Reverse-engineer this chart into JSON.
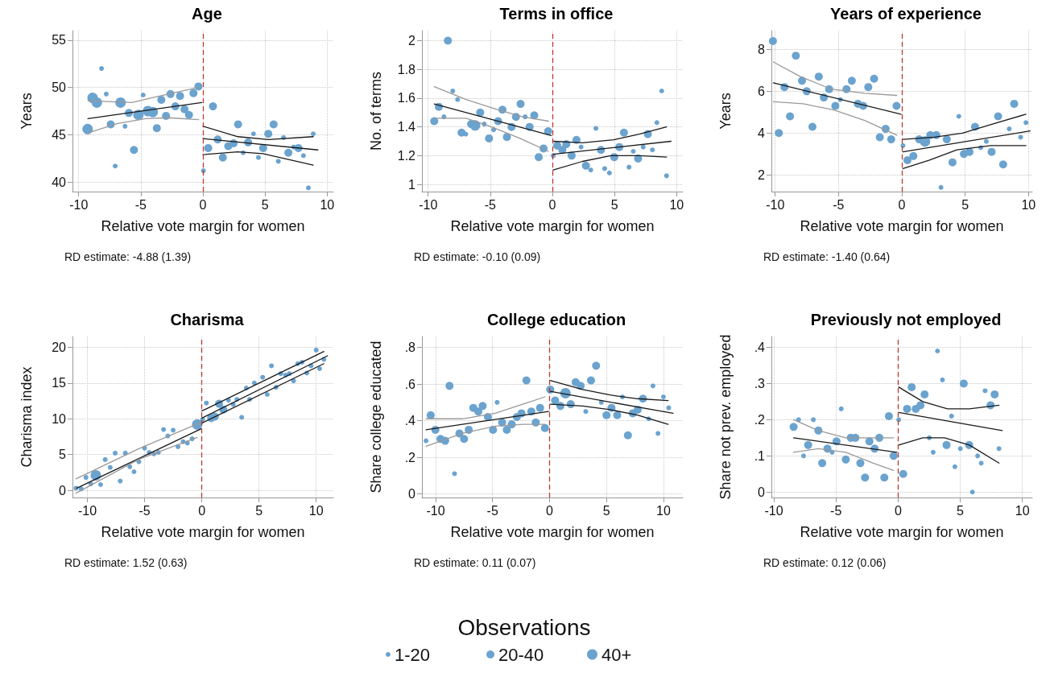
{
  "chart_data": [
    {
      "type": "scatter",
      "title": "Age",
      "xlabel": "Relative vote margin for women",
      "ylabel": "Years",
      "xlim": [
        -10.5,
        10.5
      ],
      "xticks": [
        -10,
        -5,
        0,
        5,
        10
      ],
      "ylim": [
        39,
        56
      ],
      "yticks": [
        40,
        45,
        50,
        55
      ],
      "grid": true,
      "annotations": [
        "RD estimate: -4.88 (1.39)"
      ],
      "ref_lines": [
        {
          "axis": "x",
          "value": 0,
          "color": "#c0392b",
          "line_style": "dashed"
        }
      ],
      "series": [
        {
          "type": "scatter",
          "marker": "circle",
          "color": "#6ba3cf",
          "x": [
            -8.16,
            -7.78,
            -7.06,
            -6.27,
            -4.81,
            0.04,
            3.24,
            4.07,
            4.47,
            6.07,
            6.49,
            7.3,
            8.09,
            8.49,
            8.88
          ],
          "values": [
            52.0,
            49.3,
            41.7,
            45.9,
            49.2,
            41.2,
            43.1,
            45.1,
            42.6,
            42.2,
            44.7,
            43.7,
            42.8,
            39.4,
            45.1
          ]
        },
        {
          "type": "scatter",
          "marker": "circle",
          "color": "#6ba3cf",
          "x": [
            -7.42,
            -5.96,
            -5.55,
            -3.71,
            -3.35,
            -2.97,
            -2.61,
            -2.22,
            -1.84,
            -1.48,
            -1.12,
            -0.76,
            -0.36,
            0.43,
            0.81,
            1.19,
            1.6,
            2.04,
            2.47,
            2.83,
            3.64,
            4.85,
            5.26,
            5.69,
            6.88,
            7.69
          ],
          "values": [
            46.1,
            47.3,
            43.4,
            45.7,
            48.7,
            47.0,
            49.3,
            48.0,
            49.1,
            47.7,
            47.1,
            49.4,
            50.1,
            43.6,
            48.0,
            44.5,
            42.6,
            43.8,
            44.1,
            46.1,
            44.2,
            43.6,
            45.1,
            46.1,
            43.1,
            43.6
          ]
        },
        {
          "type": "scatter",
          "marker": "circle",
          "color": "#6ba3cf",
          "x": [
            -9.28,
            -8.88,
            -8.54,
            -6.63,
            -5.19,
            -4.43,
            -4.04
          ],
          "values": [
            45.6,
            48.9,
            48.4,
            48.4,
            47.1,
            47.5,
            47.4
          ]
        },
        {
          "type": "line",
          "marker": "none",
          "color": "#1a1a1a",
          "x": [
            -9.26,
            -0.09
          ],
          "values": [
            46.7,
            48.4
          ]
        },
        {
          "type": "line",
          "marker": "none",
          "color": "#999999",
          "x": [
            -9.26,
            -5.73,
            -2.81,
            -0.34
          ],
          "values": [
            48.6,
            48.4,
            49.3,
            50.0
          ]
        },
        {
          "type": "line",
          "marker": "none",
          "color": "#999999",
          "x": [
            -9.26,
            -6.85,
            -4.61,
            -2.81,
            -0.34
          ],
          "values": [
            45.2,
            46.2,
            46.7,
            46.8,
            46.6
          ]
        },
        {
          "type": "line",
          "marker": "none",
          "color": "#1a1a1a",
          "x": [
            0,
            9.26
          ],
          "values": [
            44.6,
            43.4
          ]
        },
        {
          "type": "line",
          "marker": "none",
          "color": "#1a1a1a",
          "x": [
            0,
            2.81,
            5.28,
            8.88
          ],
          "values": [
            45.9,
            44.8,
            44.5,
            44.8
          ]
        },
        {
          "type": "line",
          "marker": "none",
          "color": "#1a1a1a",
          "x": [
            0,
            2.81,
            4.83,
            8.88
          ],
          "values": [
            42.9,
            43.2,
            43.0,
            41.8
          ]
        }
      ]
    },
    {
      "type": "scatter",
      "title": "Terms in office",
      "xlabel": "Relative vote margin for women",
      "ylabel": "No. of terms",
      "xlim": [
        -10.5,
        10.5
      ],
      "xticks": [
        -10,
        -5,
        0,
        5,
        10
      ],
      "ylim": [
        0.95,
        2.07
      ],
      "yticks": [
        1,
        1.2,
        1.4,
        1.6,
        1.8,
        2
      ],
      "grid": true,
      "annotations": [
        "RD estimate: -0.10 (0.09)"
      ],
      "ref_lines": [
        {
          "axis": "x",
          "value": 0,
          "color": "#c0392b",
          "line_style": "dashed"
        }
      ],
      "series": [
        {
          "type": "scatter",
          "marker": "circle",
          "color": "#6ba3cf",
          "x": [
            -8.73,
            -8.02,
            -7.63,
            -6.97,
            -5.49,
            -4.73,
            -2.19,
            0.07,
            2.31,
            3.09,
            3.5,
            4.21,
            4.59,
            6.17,
            6.51,
            7.31,
            8.05,
            8.41,
            8.8,
            9.19
          ],
          "values": [
            1.47,
            1.65,
            1.59,
            1.35,
            1.42,
            1.38,
            1.47,
            1.2,
            1.26,
            1.1,
            1.39,
            1.11,
            1.08,
            1.12,
            1.23,
            1.26,
            1.24,
            1.43,
            1.65,
            1.06
          ]
        },
        {
          "type": "scatter",
          "marker": "circle",
          "color": "#6ba3cf",
          "x": [
            -9.51,
            -9.14,
            -8.41,
            -7.31,
            -6.54,
            -5.81,
            -5.1,
            -4.37,
            -4.02,
            -3.66,
            -3.29,
            -2.93,
            -2.56,
            -1.83,
            -1.46,
            -1.1,
            -0.71,
            -0.34,
            0.39,
            0.8,
            1.12,
            1.55,
            1.94,
            2.7,
            3.91,
            4.98,
            5.39,
            5.76,
            6.9,
            7.68
          ],
          "values": [
            1.44,
            1.54,
            2.0,
            1.36,
            1.42,
            1.5,
            1.32,
            1.44,
            1.52,
            1.33,
            1.4,
            1.47,
            1.56,
            1.4,
            1.48,
            1.19,
            1.25,
            1.37,
            1.27,
            1.24,
            1.28,
            1.2,
            1.31,
            1.13,
            1.24,
            1.19,
            1.26,
            1.36,
            1.18,
            1.35
          ]
        },
        {
          "type": "scatter",
          "marker": "circle",
          "color": "#6ba3cf",
          "x": [
            -6.22
          ],
          "values": [
            1.41
          ]
        },
        {
          "type": "line",
          "marker": "none",
          "color": "#1a1a1a",
          "x": [
            -9.51,
            -0.09
          ],
          "values": [
            1.56,
            1.34
          ]
        },
        {
          "type": "line",
          "marker": "none",
          "color": "#999999",
          "x": [
            -9.51,
            -6.95,
            -4.43,
            -2.38,
            -0.32
          ],
          "values": [
            1.68,
            1.59,
            1.52,
            1.47,
            1.44
          ]
        },
        {
          "type": "line",
          "marker": "none",
          "color": "#999999",
          "x": [
            -9.51,
            -6.95,
            -4.89,
            -2.61,
            -0.32
          ],
          "values": [
            1.46,
            1.46,
            1.4,
            1.32,
            1.23
          ]
        },
        {
          "type": "line",
          "marker": "none",
          "color": "#1a1a1a",
          "x": [
            0.07,
            9.55
          ],
          "values": [
            1.21,
            1.3
          ]
        },
        {
          "type": "line",
          "marker": "none",
          "color": "#1a1a1a",
          "x": [
            0.07,
            2.42,
            4.94,
            6.99,
            9.19
          ],
          "values": [
            1.3,
            1.29,
            1.31,
            1.35,
            1.4
          ]
        },
        {
          "type": "line",
          "marker": "none",
          "color": "#1a1a1a",
          "x": [
            0.07,
            2.42,
            4.71,
            6.99,
            9.19
          ],
          "values": [
            1.1,
            1.16,
            1.2,
            1.2,
            1.19
          ]
        }
      ]
    },
    {
      "type": "scatter",
      "title": "Years of experience",
      "xlabel": "Relative vote margin for women",
      "ylabel": "Years",
      "xlim": [
        -10.3,
        10.3
      ],
      "xticks": [
        -10,
        -5,
        0,
        5,
        10
      ],
      "ylim": [
        1.2,
        8.9
      ],
      "yticks": [
        2,
        4,
        6,
        8
      ],
      "grid": true,
      "annotations": [
        "RD estimate: -1.40 (0.64)"
      ],
      "ref_lines": [
        {
          "axis": "x",
          "value": 0,
          "color": "#c0392b",
          "line_style": "dashed"
        }
      ],
      "series": [
        {
          "type": "scatter",
          "marker": "circle",
          "color": "#6ba3cf",
          "x": [
            -4.86,
            0.09,
            3.09,
            4.5,
            6.23,
            6.67,
            8.48,
            9.38,
            9.8
          ],
          "values": [
            5.6,
            3.4,
            1.4,
            4.8,
            3.3,
            3.6,
            4.2,
            3.8,
            4.5
          ]
        },
        {
          "type": "scatter",
          "marker": "circle",
          "color": "#6ba3cf",
          "x": [
            -10.18,
            -9.71,
            -9.27,
            -8.83,
            -8.37,
            -7.88,
            -7.51,
            -7.06,
            -6.56,
            -6.16,
            -5.74,
            -5.25,
            -4.37,
            -3.95,
            -3.47,
            -3.05,
            -2.65,
            -2.19,
            -1.74,
            -1.28,
            -0.84,
            -0.42,
            0.44,
            0.91,
            1.37,
            2.25,
            2.72,
            3.55,
            4.0,
            4.9,
            5.34,
            5.78,
            7.09,
            7.6,
            8.0,
            8.87
          ],
          "values": [
            8.4,
            4.0,
            6.2,
            4.8,
            7.7,
            6.5,
            6.0,
            4.3,
            6.7,
            5.7,
            6.1,
            5.3,
            6.1,
            6.5,
            5.4,
            5.3,
            6.2,
            6.6,
            3.8,
            4.2,
            3.7,
            5.3,
            2.7,
            2.9,
            3.7,
            3.9,
            3.9,
            3.7,
            2.6,
            3.0,
            3.1,
            4.3,
            3.1,
            4.8,
            2.5,
            5.4
          ]
        },
        {
          "type": "scatter",
          "marker": "circle",
          "color": "#6ba3cf",
          "x": [
            1.83
          ],
          "values": [
            3.6
          ]
        },
        {
          "type": "line",
          "marker": "none",
          "color": "#1a1a1a",
          "x": [
            -10.15,
            -0.07
          ],
          "values": [
            6.4,
            4.9
          ]
        },
        {
          "type": "line",
          "marker": "none",
          "color": "#999999",
          "x": [
            -10.15,
            -8.01,
            -5.58,
            -2.94,
            -0.4
          ],
          "values": [
            7.4,
            6.7,
            6.1,
            5.9,
            5.8
          ]
        },
        {
          "type": "line",
          "marker": "none",
          "color": "#999999",
          "x": [
            -10.15,
            -7.79,
            -5.36,
            -2.94,
            -0.4
          ],
          "values": [
            5.5,
            5.4,
            5.1,
            4.6,
            3.9
          ]
        },
        {
          "type": "line",
          "marker": "none",
          "color": "#1a1a1a",
          "x": [
            0.09,
            10.13
          ],
          "values": [
            3.1,
            4.1
          ]
        },
        {
          "type": "line",
          "marker": "none",
          "color": "#1a1a1a",
          "x": [
            0.09,
            2.58,
            4.79,
            7.0,
            9.8
          ],
          "values": [
            3.7,
            3.8,
            4.0,
            4.4,
            4.9
          ]
        },
        {
          "type": "line",
          "marker": "none",
          "color": "#1a1a1a",
          "x": [
            0.09,
            2.14,
            4.35,
            7.0,
            9.8
          ],
          "values": [
            2.3,
            2.7,
            3.2,
            3.4,
            3.4
          ]
        }
      ]
    },
    {
      "type": "scatter",
      "title": "Charisma",
      "xlabel": "Relative vote margin for women",
      "ylabel": "Charisma index",
      "xlim": [
        -11.3,
        11.5
      ],
      "xticks": [
        -10,
        -5,
        0,
        5,
        10
      ],
      "ylim": [
        -1,
        21.5
      ],
      "yticks": [
        0,
        5,
        10,
        15,
        20
      ],
      "grid": true,
      "annotations": [
        "RD estimate: 1.52 (0.63)"
      ],
      "ref_lines": [
        {
          "axis": "x",
          "value": 0,
          "color": "#c0392b",
          "line_style": "dashed"
        }
      ],
      "series": [
        {
          "type": "scatter",
          "marker": "circle",
          "color": "#6ba3cf",
          "x": [
            -10.99,
            -10.54,
            -10.12,
            -9.7,
            -8.84,
            -8.44,
            -8.0,
            -7.57,
            -7.13,
            -6.68,
            -6.29,
            -5.92,
            -5.5,
            -5.0,
            -4.6,
            -4.18,
            -3.79,
            -3.34,
            -2.97,
            -2.5,
            -2.08,
            -1.63,
            -1.26,
            -0.84,
            0.07,
            0.4,
            2.33,
            2.75,
            3.07,
            3.49,
            3.89,
            4.18,
            4.6,
            5.32,
            5.72,
            6.09,
            6.49,
            6.91,
            7.33,
            7.65,
            8.02,
            8.39,
            8.76,
            9.18,
            9.55,
            10.0,
            10.3,
            10.67
          ],
          "values": [
            0.3,
            0.2,
            1.8,
            0.9,
            0.8,
            4.3,
            3.2,
            5.2,
            1.3,
            5.2,
            3.3,
            2.6,
            4.0,
            5.9,
            5.3,
            5.1,
            5.3,
            8.5,
            7.6,
            8.4,
            6.1,
            6.8,
            6.6,
            7.2,
            9.9,
            12.2,
            12.6,
            12.0,
            12.7,
            10.2,
            14.3,
            12.7,
            15.0,
            15.8,
            13.4,
            17.4,
            14.4,
            16.3,
            16.1,
            16.3,
            15.3,
            17.7,
            17.9,
            16.4,
            17.4,
            19.6,
            17.0,
            18.3
          ]
        },
        {
          "type": "scatter",
          "marker": "circle",
          "color": "#6ba3cf",
          "x": [
            0.82,
            1.14,
            1.51,
            1.88
          ],
          "values": [
            10.1,
            10.3,
            12.1,
            11.3
          ]
        },
        {
          "type": "scatter",
          "marker": "circle",
          "color": "#6ba3cf",
          "x": [
            -9.26,
            -0.4
          ],
          "values": [
            2.1,
            9.2
          ]
        },
        {
          "type": "line",
          "marker": "none",
          "color": "#1a1a1a",
          "x": [
            -10.92,
            -0.05
          ],
          "values": [
            0.3,
            8.6
          ]
        },
        {
          "type": "line",
          "marker": "none",
          "color": "#999999",
          "x": [
            -10.99,
            -5.54,
            -0.22
          ],
          "values": [
            1.6,
            5.8,
            9.4
          ]
        },
        {
          "type": "line",
          "marker": "none",
          "color": "#999999",
          "x": [
            -10.99,
            -5.54,
            -0.4
          ],
          "values": [
            -0.4,
            4.3,
            7.4
          ]
        },
        {
          "type": "line",
          "marker": "none",
          "color": "#1a1a1a",
          "x": [
            0.02,
            10.99
          ],
          "values": [
            10.1,
            18.8
          ]
        },
        {
          "type": "line",
          "marker": "none",
          "color": "#1a1a1a",
          "x": [
            0.02,
            10.67
          ],
          "values": [
            11.1,
            19.4
          ]
        },
        {
          "type": "line",
          "marker": "none",
          "color": "#1a1a1a",
          "x": [
            0.02,
            10.67
          ],
          "values": [
            9.4,
            17.7
          ]
        }
      ]
    },
    {
      "type": "scatter",
      "title": "College education",
      "xlabel": "Relative vote margin for women",
      "ylabel": "Share college educated",
      "xlim": [
        -11.2,
        11.7
      ],
      "xticks": [
        -10,
        -5,
        0,
        5,
        10
      ],
      "ylim": [
        -0.02,
        0.86
      ],
      "yticks": [
        0,
        {
          "value": 0.2,
          "label": ".2"
        },
        {
          "value": 0.4,
          "label": ".4"
        },
        {
          "value": 0.6,
          "label": ".6"
        },
        {
          "value": 0.8,
          "label": ".8"
        }
      ],
      "grid": true,
      "legend": "bottom",
      "legend_title": "Observations",
      "annotations": [
        "RD estimate: 0.11 (0.07)"
      ],
      "ref_lines": [
        {
          "axis": "x",
          "value": 0,
          "color": "#c0392b",
          "line_style": "dashed"
        }
      ],
      "series": [
        {
          "type": "scatter",
          "marker": "circle",
          "name": "1-20",
          "color": "#6ba3cf",
          "x": [
            -10.84,
            -8.34,
            -4.6,
            3.18,
            4.55,
            6.4,
            8.7,
            9.08,
            9.52,
            10.0,
            10.46
          ],
          "values": [
            0.29,
            0.11,
            0.5,
            0.45,
            0.5,
            0.53,
            0.41,
            0.59,
            0.33,
            0.53,
            0.47
          ]
        },
        {
          "type": "scatter",
          "marker": "circle",
          "name": "20-40",
          "color": "#6ba3cf",
          "x": [
            -10.43,
            -10.02,
            -9.57,
            -9.16,
            -8.78,
            -7.91,
            -7.5,
            -7.09,
            -6.69,
            -6.25,
            -5.87,
            -5.41,
            -4.96,
            -4.16,
            -3.75,
            -3.32,
            -2.87,
            -2.46,
            -2.03,
            -1.6,
            -1.21,
            -0.83,
            -0.4,
            0.06,
            0.49,
            0.95,
            1.86,
            2.29,
            2.73,
            3.64,
            4.09,
            5.0,
            5.44,
            5.94,
            6.88,
            7.31,
            7.74,
            8.2
          ],
          "values": [
            0.43,
            0.35,
            0.3,
            0.29,
            0.59,
            0.33,
            0.3,
            0.35,
            0.47,
            0.45,
            0.48,
            0.42,
            0.35,
            0.39,
            0.35,
            0.38,
            0.42,
            0.44,
            0.62,
            0.45,
            0.39,
            0.47,
            0.36,
            0.57,
            0.51,
            0.48,
            0.49,
            0.61,
            0.59,
            0.62,
            0.7,
            0.43,
            0.47,
            0.43,
            0.32,
            0.44,
            0.46,
            0.52
          ]
        },
        {
          "type": "scatter",
          "marker": "circle",
          "name": "40+",
          "color": "#6ba3cf",
          "x": [
            1.4
          ],
          "values": [
            0.55
          ]
        },
        {
          "type": "line",
          "marker": "none",
          "color": "#1a1a1a",
          "x": [
            -10.84,
            -0.08
          ],
          "values": [
            0.35,
            0.45
          ]
        },
        {
          "type": "line",
          "marker": "none",
          "color": "#999999",
          "x": [
            -10.84,
            -7.65,
            -4.77,
            -2.36,
            -0.4
          ],
          "values": [
            0.41,
            0.41,
            0.44,
            0.49,
            0.53
          ]
        },
        {
          "type": "line",
          "marker": "none",
          "color": "#999999",
          "x": [
            -10.84,
            -7.65,
            -4.77,
            -2.36,
            -0.4
          ],
          "values": [
            0.26,
            0.33,
            0.37,
            0.38,
            0.38
          ]
        },
        {
          "type": "line",
          "marker": "none",
          "color": "#1a1a1a",
          "x": [
            0.06,
            10.84
          ],
          "values": [
            0.56,
            0.44
          ]
        },
        {
          "type": "line",
          "marker": "none",
          "color": "#1a1a1a",
          "x": [
            0.06,
            2.91,
            5.32,
            7.72,
            10.41
          ],
          "values": [
            0.62,
            0.57,
            0.54,
            0.52,
            0.51
          ]
        },
        {
          "type": "line",
          "marker": "none",
          "color": "#1a1a1a",
          "x": [
            0.06,
            2.91,
            5.32,
            7.72,
            10.41
          ],
          "values": [
            0.49,
            0.48,
            0.46,
            0.43,
            0.38
          ]
        }
      ]
    },
    {
      "type": "scatter",
      "title": "Previously not employed",
      "xlabel": "Relative vote margin for women",
      "ylabel": "Share not prev. employed",
      "xlim": [
        -10.2,
        10.8
      ],
      "xticks": [
        -10,
        -5,
        0,
        5,
        10
      ],
      "ylim": [
        -0.015,
        0.43
      ],
      "yticks": [
        0,
        {
          "value": 0.1,
          "label": ".1"
        },
        {
          "value": 0.2,
          "label": ".2"
        },
        {
          "value": 0.3,
          "label": ".3"
        },
        {
          "value": 0.4,
          "label": ".4"
        }
      ],
      "grid": true,
      "annotations": [
        "RD estimate: 0.12 (0.06)"
      ],
      "ref_lines": [
        {
          "axis": "x",
          "value": 0,
          "color": "#c0392b",
          "line_style": "dashed"
        }
      ],
      "series": [
        {
          "type": "scatter",
          "marker": "circle",
          "color": "#6ba3cf",
          "x": [
            -8.01,
            -7.61,
            -6.82,
            -5.31,
            -4.58,
            0.05,
            2.51,
            2.82,
            3.17,
            3.57,
            4.3,
            4.57,
            5.01,
            5.98,
            6.4,
            6.69,
            7.0,
            8.12
          ],
          "values": [
            0.2,
            0.1,
            0.2,
            0.11,
            0.23,
            0.2,
            0.15,
            0.11,
            0.39,
            0.31,
            0.21,
            0.07,
            0.12,
            0.0,
            0.1,
            0.08,
            0.28,
            0.12
          ]
        },
        {
          "type": "scatter",
          "marker": "circle",
          "color": "#6ba3cf",
          "x": [
            -8.41,
            -7.24,
            -6.42,
            -6.11,
            -5.69,
            -4.96,
            -4.21,
            -3.81,
            -3.44,
            -3.04,
            -2.66,
            -2.31,
            -1.89,
            -1.51,
            -1.11,
            -0.74,
            -0.36,
            0.41,
            0.72,
            1.09,
            1.42,
            1.8,
            2.13,
            3.9,
            5.28,
            5.72,
            7.44,
            7.77
          ],
          "values": [
            0.18,
            0.13,
            0.17,
            0.08,
            0.12,
            0.14,
            0.09,
            0.15,
            0.15,
            0.08,
            0.04,
            0.14,
            0.12,
            0.15,
            0.04,
            0.21,
            0.1,
            0.05,
            0.23,
            0.29,
            0.23,
            0.24,
            0.27,
            0.13,
            0.3,
            0.13,
            0.24,
            0.27
          ]
        },
        {
          "type": "line",
          "marker": "none",
          "color": "#1a1a1a",
          "x": [
            -8.41,
            -0.1
          ],
          "values": [
            0.15,
            0.11
          ]
        },
        {
          "type": "line",
          "marker": "none",
          "color": "#999999",
          "x": [
            -8.41,
            -6.42,
            -4.21,
            -2.0,
            -0.36
          ],
          "values": [
            0.2,
            0.17,
            0.15,
            0.15,
            0.15
          ]
        },
        {
          "type": "line",
          "marker": "none",
          "color": "#999999",
          "x": [
            -8.41,
            -6.42,
            -4.21,
            -2.0,
            -0.36
          ],
          "values": [
            0.11,
            0.12,
            0.11,
            0.08,
            0.06
          ]
        },
        {
          "type": "line",
          "marker": "none",
          "color": "#1a1a1a",
          "x": [
            0.05,
            8.38
          ],
          "values": [
            0.22,
            0.17
          ]
        },
        {
          "type": "line",
          "marker": "none",
          "color": "#1a1a1a",
          "x": [
            0.05,
            1.98,
            3.97,
            5.74,
            8.12
          ],
          "values": [
            0.29,
            0.25,
            0.23,
            0.23,
            0.24
          ]
        },
        {
          "type": "line",
          "marker": "none",
          "color": "#1a1a1a",
          "x": [
            0.05,
            1.98,
            3.74,
            5.74,
            8.12
          ],
          "values": [
            0.13,
            0.15,
            0.15,
            0.13,
            0.08
          ]
        }
      ]
    }
  ]
}
